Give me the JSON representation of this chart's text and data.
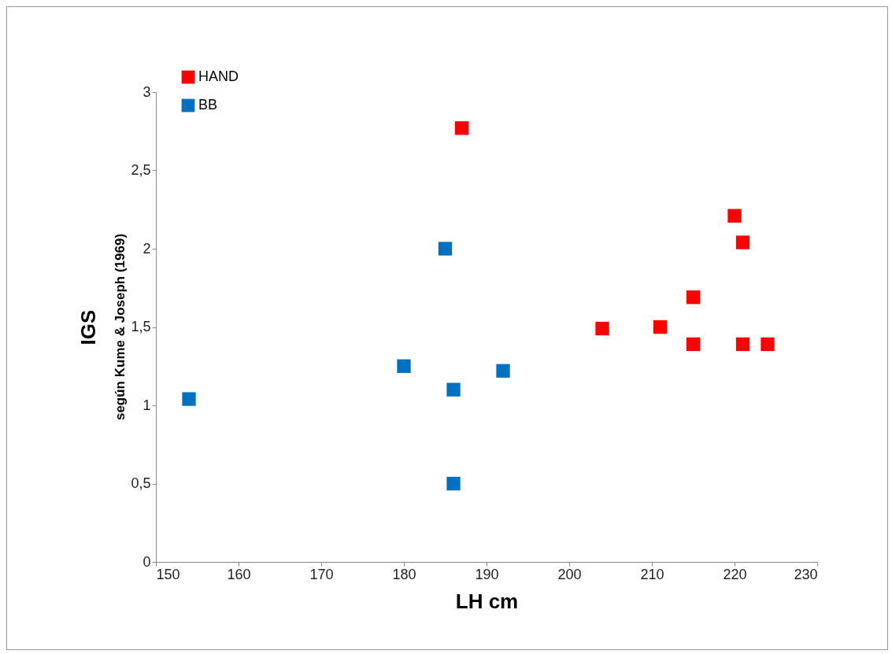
{
  "chart_data": {
    "type": "scatter",
    "xlabel": "LH cm",
    "ylabel": "IGS",
    "annotations": [
      "según Kume & Joseph (1969)"
    ],
    "series": [
      {
        "name": "HAND",
        "color": "#ff0000",
        "x": [
          187,
          204,
          211,
          215,
          215,
          220,
          221,
          221,
          224
        ],
        "values": [
          2.77,
          1.49,
          1.5,
          1.69,
          1.39,
          2.21,
          2.04,
          1.39,
          1.39
        ]
      },
      {
        "name": "BB",
        "color": "#0070c0",
        "x": [
          154,
          180,
          185,
          186,
          186,
          192
        ],
        "values": [
          1.04,
          1.25,
          2.0,
          1.1,
          0.5,
          1.22
        ]
      }
    ],
    "xlim": [
      150,
      230
    ],
    "xticks": [
      150,
      160,
      170,
      180,
      190,
      200,
      210,
      220,
      230
    ],
    "ylim": [
      0,
      3
    ],
    "yticks": [
      0,
      {
        "value": 0.5,
        "label": "0,5"
      },
      1,
      {
        "value": 1.5,
        "label": "1,5"
      },
      2,
      {
        "value": 2.5,
        "label": "2,5"
      },
      3
    ],
    "grid": false,
    "legend": "top left",
    "marker": "square"
  }
}
